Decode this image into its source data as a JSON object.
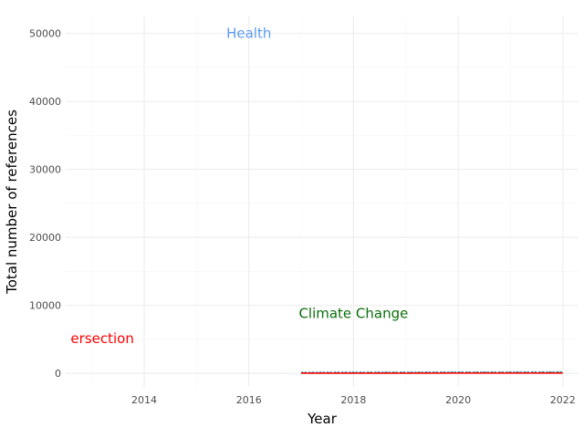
{
  "chart_data": {
    "type": "line",
    "title": "",
    "xlabel": "Year",
    "ylabel": "Total number of references",
    "xlim": [
      2012.5,
      2022.3
    ],
    "ylim": [
      -2000,
      52500
    ],
    "x_ticks": [
      2014,
      2016,
      2018,
      2020,
      2022
    ],
    "y_ticks": [
      0,
      10000,
      20000,
      30000,
      40000,
      50000
    ],
    "grid": true,
    "legend": "none",
    "series": [
      {
        "color": "#4a90e2",
        "dash": "dotted",
        "x": [
          2017,
          2018,
          2019,
          2020,
          2021,
          2022
        ],
        "values": [
          150,
          160,
          170,
          180,
          190,
          200
        ]
      },
      {
        "color": "#2e7d32",
        "dash": "dashed",
        "x": [
          2017,
          2018,
          2019,
          2020,
          2021,
          2022
        ],
        "values": [
          60,
          70,
          80,
          90,
          100,
          110
        ]
      },
      {
        "color": "#ff0000",
        "dash": "solid",
        "x": [
          2017,
          2018,
          2019,
          2020,
          2021,
          2022
        ],
        "values": [
          10,
          15,
          20,
          25,
          30,
          35
        ]
      }
    ],
    "annotations": [
      {
        "text": "Health",
        "x": 2016,
        "y": 50000,
        "color": "#5b9bf0"
      },
      {
        "text": "Climate Change",
        "x": 2018,
        "y": 8800,
        "color": "#0a6e0a"
      },
      {
        "text": "ersection",
        "x": 2013.2,
        "y": 5100,
        "color": "#ff0000"
      }
    ]
  }
}
